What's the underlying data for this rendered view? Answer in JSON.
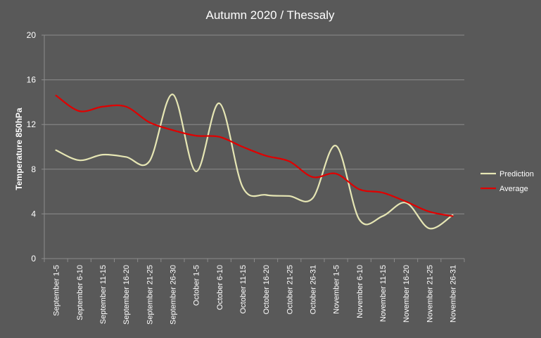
{
  "chart_data": {
    "type": "line",
    "title": "Autumn 2020 / Thessaly",
    "xlabel": "",
    "ylabel": "Temperature 850hPa",
    "ylim": [
      0,
      20
    ],
    "yticks": [
      0,
      4,
      8,
      12,
      16,
      20
    ],
    "grid": true,
    "legend_position": "right",
    "categories": [
      "September 1-5",
      "September 6-10",
      "September 11-15",
      "September 16-20",
      "September 21-25",
      "September 26-30",
      "October 1-5",
      "October 6-10",
      "October 11-15",
      "October 16-20",
      "October 21-25",
      "October 26-31",
      "November 1-5",
      "November 6-10",
      "November 11-15",
      "November 16-20",
      "November 21-25",
      "November 26-31"
    ],
    "series": [
      {
        "name": "Prediction",
        "color": "#e6e6b4",
        "values": [
          9.7,
          8.8,
          9.3,
          9.1,
          8.7,
          14.7,
          7.8,
          13.9,
          6.4,
          5.7,
          5.6,
          5.4,
          10.1,
          3.5,
          3.8,
          5.0,
          2.7,
          3.9
        ]
      },
      {
        "name": "Average",
        "color": "#e00000",
        "values": [
          14.6,
          13.2,
          13.6,
          13.6,
          12.2,
          11.5,
          11.0,
          10.9,
          10.0,
          9.2,
          8.7,
          7.3,
          7.6,
          6.2,
          5.9,
          5.1,
          4.2,
          3.8
        ]
      }
    ]
  }
}
